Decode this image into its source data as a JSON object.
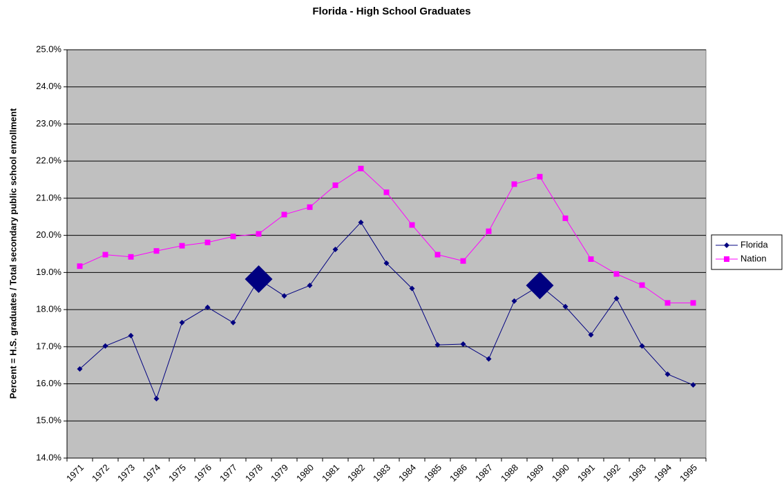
{
  "chart_data": {
    "type": "line",
    "title": "Florida - High School Graduates",
    "y_label": "Percent = H.S. graduates / Total secondary public school enrollment",
    "categories": [
      "1971",
      "1972",
      "1973",
      "1974",
      "1975",
      "1976",
      "1977",
      "1978",
      "1979",
      "1980",
      "1981",
      "1982",
      "1983",
      "1984",
      "1985",
      "1986",
      "1987",
      "1988",
      "1989",
      "1990",
      "1991",
      "1992",
      "1993",
      "1994",
      "1995"
    ],
    "series": [
      {
        "name": "Florida",
        "color": "#000080",
        "marker": "diamond",
        "highlighted_points": [
          7,
          18
        ],
        "values": [
          16.4,
          17.02,
          17.3,
          15.6,
          17.65,
          18.06,
          17.65,
          18.82,
          18.37,
          18.65,
          19.62,
          20.35,
          19.25,
          18.57,
          17.05,
          17.07,
          16.67,
          18.23,
          18.65,
          18.08,
          17.32,
          18.3,
          17.02,
          16.26,
          15.97
        ]
      },
      {
        "name": "Nation",
        "color": "#ff00ff",
        "marker": "square",
        "values": [
          19.17,
          19.48,
          19.42,
          19.58,
          19.72,
          19.81,
          19.97,
          20.04,
          20.56,
          20.76,
          21.35,
          21.8,
          21.16,
          20.28,
          19.48,
          19.31,
          20.11,
          21.38,
          21.58,
          20.46,
          19.36,
          18.96,
          18.66,
          18.18,
          18.18
        ]
      }
    ],
    "ylim": [
      14,
      25
    ],
    "yticks": [
      {
        "value": 14,
        "label": "14.0%"
      },
      {
        "value": 15,
        "label": "15.0%"
      },
      {
        "value": 16,
        "label": "16.0%"
      },
      {
        "value": 17,
        "label": "17.0%"
      },
      {
        "value": 18,
        "label": "18.0%"
      },
      {
        "value": 19,
        "label": "19.0%"
      },
      {
        "value": 20,
        "label": "20.0%"
      },
      {
        "value": 21,
        "label": "21.0%"
      },
      {
        "value": 22,
        "label": "22.0%"
      },
      {
        "value": 23,
        "label": "23.0%"
      },
      {
        "value": 24,
        "label": "24.0%"
      },
      {
        "value": 25,
        "label": "25.0%"
      }
    ],
    "grid": true,
    "plot_background": "#c0c0c0",
    "legend_position": "right"
  }
}
